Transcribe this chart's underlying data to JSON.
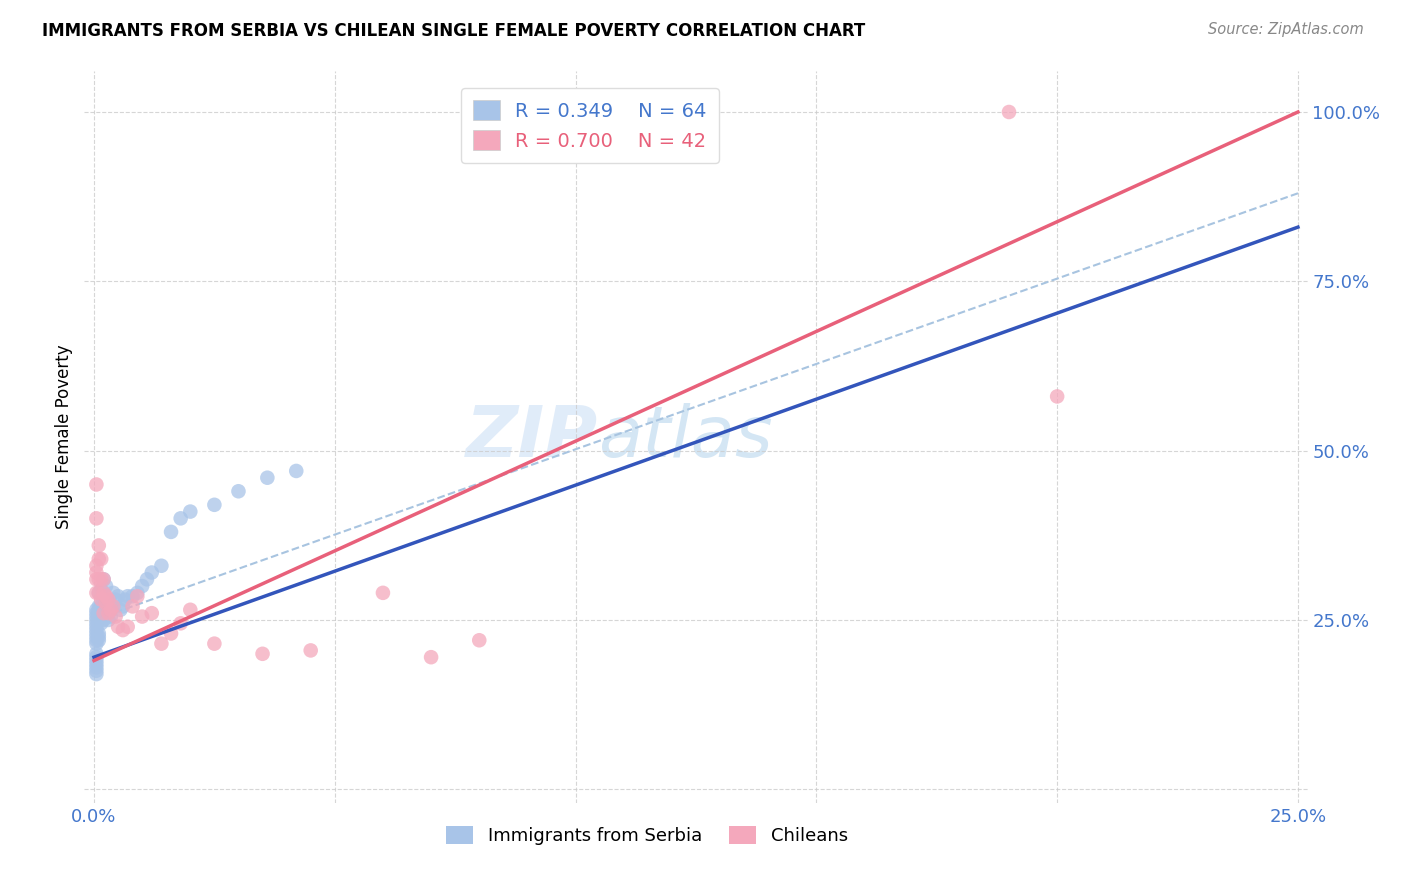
{
  "title": "IMMIGRANTS FROM SERBIA VS CHILEAN SINGLE FEMALE POVERTY CORRELATION CHART",
  "source": "Source: ZipAtlas.com",
  "ylabel": "Single Female Poverty",
  "xlim": [
    -0.002,
    0.252
  ],
  "ylim": [
    -0.02,
    1.06
  ],
  "x_ticks": [
    0.0,
    0.05,
    0.1,
    0.15,
    0.2,
    0.25
  ],
  "x_tick_labels": [
    "0.0%",
    "",
    "",
    "",
    "",
    "25.0%"
  ],
  "y_ticks": [
    0.0,
    0.25,
    0.5,
    0.75,
    1.0
  ],
  "y_tick_labels": [
    "",
    "25.0%",
    "50.0%",
    "75.0%",
    "100.0%"
  ],
  "serbia_color": "#a8c4e8",
  "chilean_color": "#f4a8bc",
  "serbia_line_color": "#3355bb",
  "chilean_line_color": "#e8607a",
  "dashed_line_color": "#a8c4e0",
  "serbia_R": 0.349,
  "serbia_N": 64,
  "chilean_R": 0.7,
  "chilean_N": 42,
  "legend_label_1": "Immigrants from Serbia",
  "legend_label_2": "Chileans",
  "watermark_zip": "ZIP",
  "watermark_atlas": "atlas",
  "serbia_line_x0": 0.0,
  "serbia_line_y0": 0.195,
  "serbia_line_x1": 0.25,
  "serbia_line_y1": 0.83,
  "chilean_line_x0": 0.0,
  "chilean_line_y0": 0.19,
  "chilean_line_x1": 0.25,
  "chilean_line_y1": 1.0,
  "dashed_line_x0": 0.0,
  "dashed_line_y0": 0.25,
  "dashed_line_x1": 0.25,
  "dashed_line_y1": 0.88,
  "serbia_x": [
    0.0005,
    0.0005,
    0.0005,
    0.0005,
    0.0005,
    0.0005,
    0.0005,
    0.0005,
    0.0005,
    0.0005,
    0.0005,
    0.0005,
    0.0005,
    0.0005,
    0.0005,
    0.0005,
    0.0005,
    0.0005,
    0.001,
    0.001,
    0.001,
    0.001,
    0.001,
    0.001,
    0.001,
    0.0015,
    0.0015,
    0.0015,
    0.0015,
    0.0015,
    0.002,
    0.002,
    0.002,
    0.002,
    0.002,
    0.0025,
    0.0025,
    0.0025,
    0.003,
    0.003,
    0.003,
    0.0035,
    0.0035,
    0.004,
    0.004,
    0.0045,
    0.005,
    0.0055,
    0.006,
    0.0065,
    0.007,
    0.008,
    0.009,
    0.01,
    0.011,
    0.012,
    0.014,
    0.016,
    0.018,
    0.02,
    0.025,
    0.03,
    0.036,
    0.042
  ],
  "serbia_y": [
    0.2,
    0.215,
    0.22,
    0.225,
    0.23,
    0.235,
    0.24,
    0.245,
    0.25,
    0.255,
    0.26,
    0.265,
    0.17,
    0.175,
    0.18,
    0.185,
    0.19,
    0.195,
    0.22,
    0.225,
    0.23,
    0.26,
    0.265,
    0.27,
    0.29,
    0.245,
    0.255,
    0.26,
    0.27,
    0.295,
    0.25,
    0.26,
    0.27,
    0.28,
    0.31,
    0.26,
    0.27,
    0.3,
    0.25,
    0.26,
    0.265,
    0.255,
    0.265,
    0.27,
    0.29,
    0.28,
    0.285,
    0.265,
    0.27,
    0.28,
    0.285,
    0.285,
    0.29,
    0.3,
    0.31,
    0.32,
    0.33,
    0.38,
    0.4,
    0.41,
    0.42,
    0.44,
    0.46,
    0.47
  ],
  "chilean_x": [
    0.0005,
    0.0005,
    0.0005,
    0.0005,
    0.0005,
    0.0005,
    0.001,
    0.001,
    0.001,
    0.001,
    0.0015,
    0.0015,
    0.0015,
    0.002,
    0.002,
    0.002,
    0.0025,
    0.0025,
    0.003,
    0.003,
    0.0035,
    0.004,
    0.0045,
    0.005,
    0.006,
    0.007,
    0.008,
    0.009,
    0.01,
    0.012,
    0.014,
    0.016,
    0.018,
    0.02,
    0.025,
    0.035,
    0.045,
    0.06,
    0.07,
    0.08,
    0.19,
    0.2
  ],
  "chilean_y": [
    0.29,
    0.31,
    0.32,
    0.33,
    0.4,
    0.45,
    0.29,
    0.31,
    0.34,
    0.36,
    0.28,
    0.31,
    0.34,
    0.26,
    0.29,
    0.31,
    0.275,
    0.285,
    0.26,
    0.28,
    0.265,
    0.27,
    0.255,
    0.24,
    0.235,
    0.24,
    0.27,
    0.285,
    0.255,
    0.26,
    0.215,
    0.23,
    0.245,
    0.265,
    0.215,
    0.2,
    0.205,
    0.29,
    0.195,
    0.22,
    1.0,
    0.58
  ]
}
